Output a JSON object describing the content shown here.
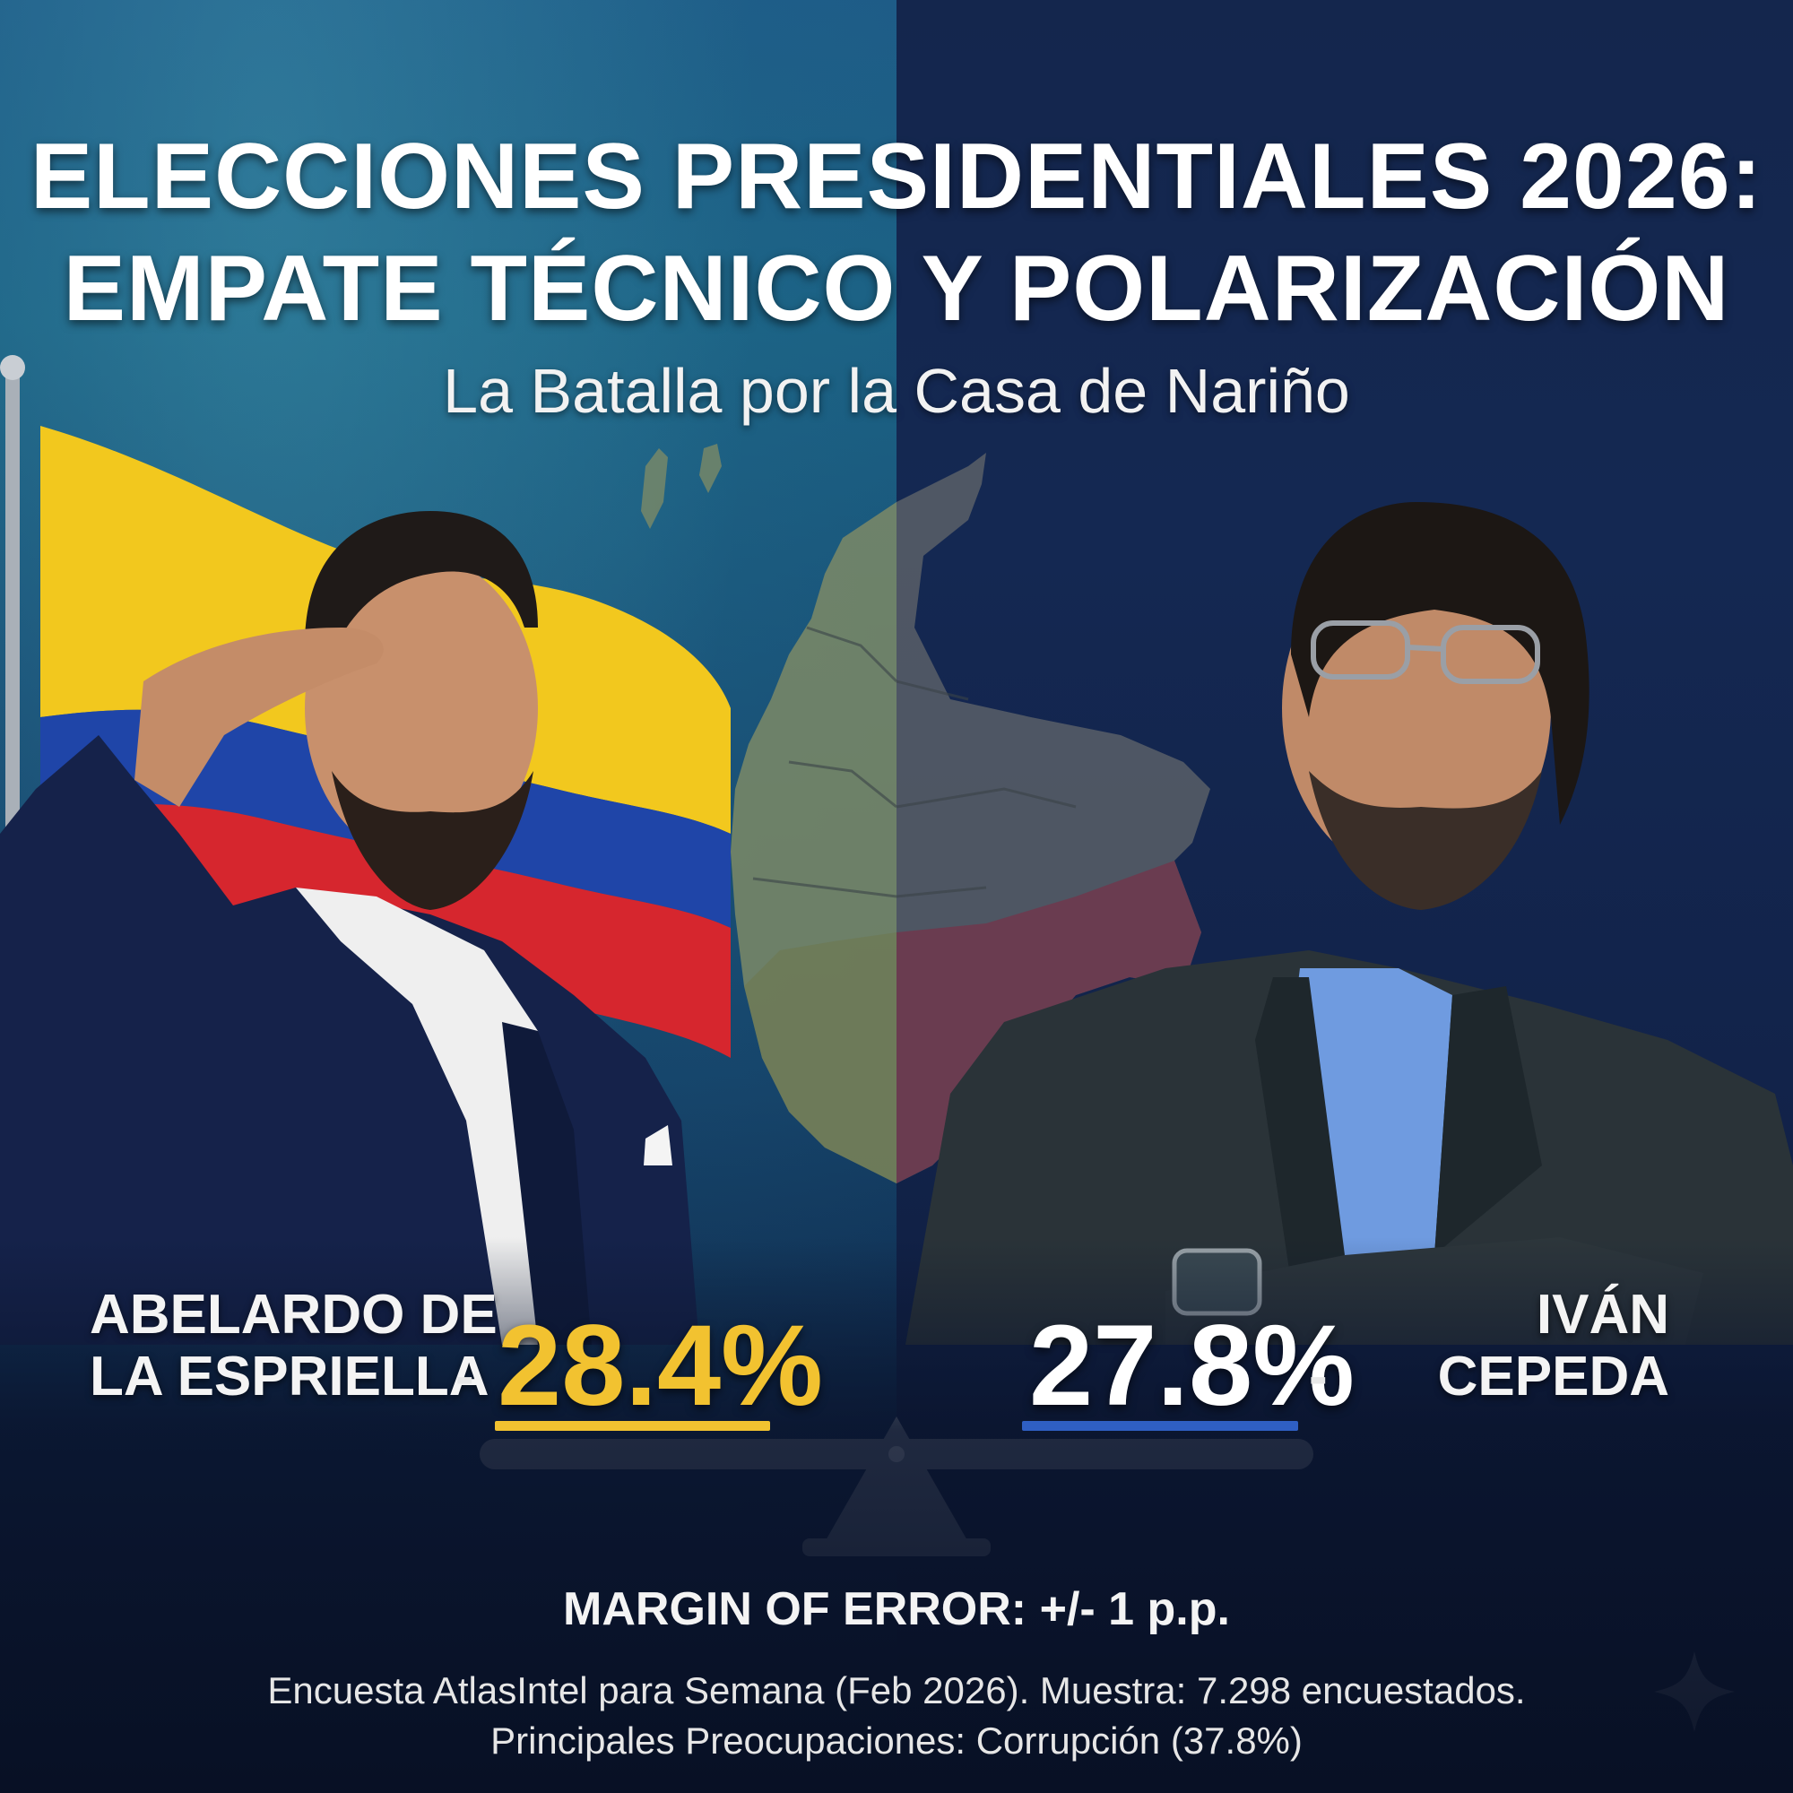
{
  "header": {
    "title_line1": "ELECCIONES PRESIDENTIALES 2026:",
    "title_line2": "EMPATE TÉCNICO Y POLARIZACIÓN",
    "subtitle": "La Batalla por la Casa de Nariño"
  },
  "candidates": [
    {
      "name_line1": "ABELARDO DE",
      "name_line2": "LA ESPRIELLA",
      "dash": "-",
      "percent": "28.4%",
      "accent_color": "#f2c230"
    },
    {
      "name_line1": "IVÁN",
      "name_line2": "CEPEDA",
      "dash": "-",
      "percent": "27.8%",
      "accent_color": "#2f5fc4"
    }
  ],
  "margin_of_error": "MARGIN OF ERROR: +/- 1 p.p.",
  "footer": {
    "source_line1": "Encuesta AtlasIntel para Semana (Feb 2026). Muestra: 7.298 encuestados.",
    "source_line2": "Principales Preocupaciones: Corrupción (37.8%)"
  },
  "icons": {
    "scale": "balance-scale-icon",
    "sparkle": "sparkle-icon"
  },
  "flag_colors": [
    "#f2c81e",
    "#1f45a8",
    "#d6262e"
  ]
}
